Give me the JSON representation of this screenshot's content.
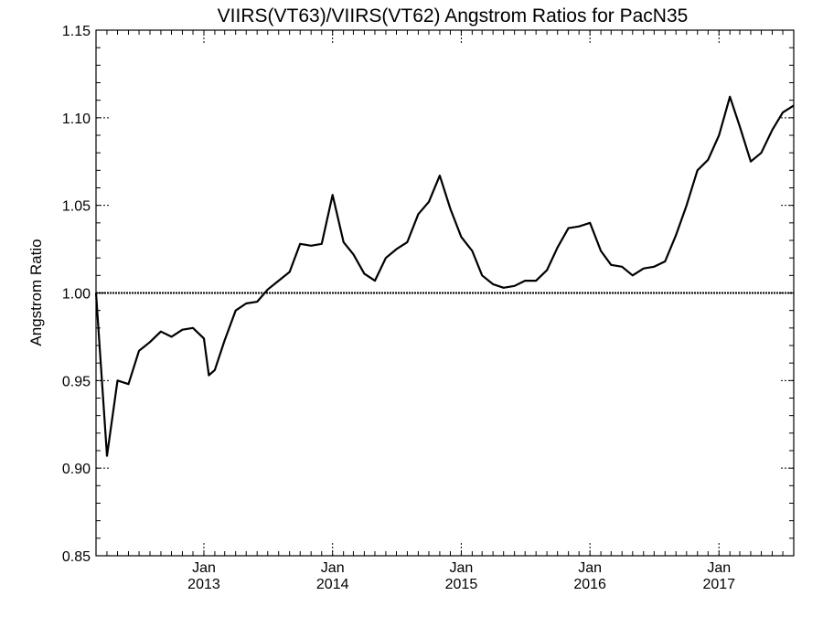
{
  "chart_data": {
    "type": "line",
    "title": "VIIRS(VT63)/VIIRS(VT62)  Angstrom Ratios for PacN35",
    "ylabel": "Angstrom Ratio",
    "xlabel": "",
    "ylim": [
      0.85,
      1.15
    ],
    "xlim": [
      "2012-03-01",
      "2017-08-01"
    ],
    "y_ticks": [
      "0.85",
      "0.90",
      "0.95",
      "1.00",
      "1.05",
      "1.10",
      "1.15"
    ],
    "x_ticks": [
      {
        "date": "2013-01-01",
        "month": "Jan",
        "year": "2013"
      },
      {
        "date": "2014-01-01",
        "month": "Jan",
        "year": "2014"
      },
      {
        "date": "2015-01-01",
        "month": "Jan",
        "year": "2015"
      },
      {
        "date": "2016-01-01",
        "month": "Jan",
        "year": "2016"
      },
      {
        "date": "2017-01-01",
        "month": "Jan",
        "year": "2017"
      }
    ],
    "reference_line": 1.0,
    "series": [
      {
        "x": [
          "2012-03-01",
          "2012-04-01",
          "2012-05-01",
          "2012-06-01",
          "2012-07-01",
          "2012-08-01",
          "2012-09-01",
          "2012-10-01",
          "2012-11-01",
          "2012-12-01",
          "2013-01-01",
          "2013-01-15",
          "2013-02-01",
          "2013-03-01",
          "2013-04-01",
          "2013-05-01",
          "2013-06-01",
          "2013-07-01",
          "2013-08-01",
          "2013-09-01",
          "2013-10-01",
          "2013-11-01",
          "2013-12-01",
          "2014-01-01",
          "2014-02-01",
          "2014-03-01",
          "2014-04-01",
          "2014-05-01",
          "2014-06-01",
          "2014-07-01",
          "2014-08-01",
          "2014-09-01",
          "2014-10-01",
          "2014-11-01",
          "2014-12-01",
          "2015-01-01",
          "2015-02-01",
          "2015-03-01",
          "2015-04-01",
          "2015-05-01",
          "2015-06-01",
          "2015-07-01",
          "2015-08-01",
          "2015-09-01",
          "2015-10-01",
          "2015-11-01",
          "2015-12-01",
          "2016-01-01",
          "2016-02-01",
          "2016-03-01",
          "2016-04-01",
          "2016-05-01",
          "2016-06-01",
          "2016-07-01",
          "2016-08-01",
          "2016-09-01",
          "2016-10-01",
          "2016-11-01",
          "2016-12-01",
          "2017-01-01",
          "2017-02-01",
          "2017-03-01",
          "2017-04-01",
          "2017-05-01",
          "2017-06-01",
          "2017-07-01",
          "2017-08-01"
        ],
        "values": [
          1.0,
          0.907,
          0.95,
          0.948,
          0.967,
          0.972,
          0.978,
          0.975,
          0.979,
          0.98,
          0.974,
          0.953,
          0.956,
          0.973,
          0.99,
          0.994,
          0.995,
          1.002,
          1.007,
          1.012,
          1.028,
          1.027,
          1.028,
          1.056,
          1.029,
          1.022,
          1.011,
          1.007,
          1.02,
          1.025,
          1.029,
          1.045,
          1.052,
          1.067,
          1.048,
          1.032,
          1.024,
          1.01,
          1.005,
          1.003,
          1.004,
          1.007,
          1.007,
          1.013,
          1.026,
          1.037,
          1.038,
          1.04,
          1.024,
          1.016,
          1.015,
          1.01,
          1.014,
          1.015,
          1.018,
          1.033,
          1.05,
          1.07,
          1.076,
          1.09,
          1.112,
          1.095,
          1.075,
          1.08,
          1.093,
          1.103,
          1.107
        ]
      }
    ]
  }
}
